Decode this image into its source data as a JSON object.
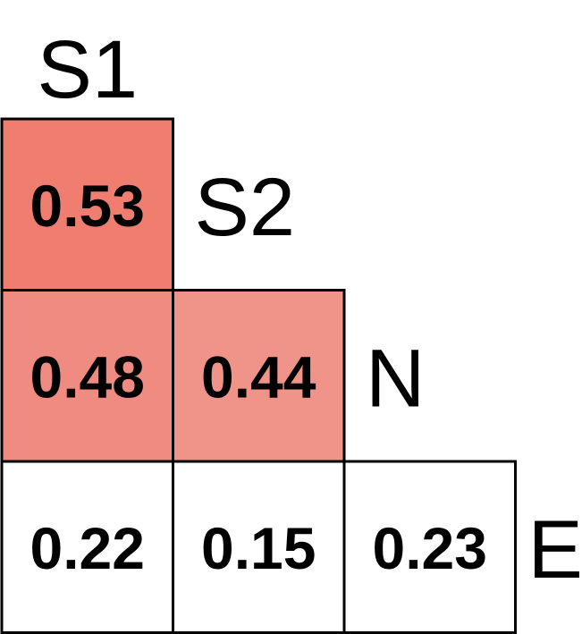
{
  "chart_data": {
    "type": "heatmap",
    "layout": "lower-triangular",
    "title": "",
    "xlabel": "",
    "ylabel": "",
    "labels": [
      "S1",
      "S2",
      "N",
      "E"
    ],
    "cells": [
      {
        "row": 0,
        "col": 0,
        "value": 0.53,
        "text": "0.53",
        "color": "#f07e70"
      },
      {
        "row": 1,
        "col": 0,
        "value": 0.48,
        "text": "0.48",
        "color": "#ef8b80"
      },
      {
        "row": 1,
        "col": 1,
        "value": 0.44,
        "text": "0.44",
        "color": "#f0948a"
      },
      {
        "row": 2,
        "col": 0,
        "value": 0.22,
        "text": "0.22",
        "color": "#ffffff"
      },
      {
        "row": 2,
        "col": 1,
        "value": 0.15,
        "text": "0.15",
        "color": "#ffffff"
      },
      {
        "row": 2,
        "col": 2,
        "value": 0.23,
        "text": "0.23",
        "color": "#ffffff"
      }
    ],
    "grid": true,
    "legend": "none"
  }
}
